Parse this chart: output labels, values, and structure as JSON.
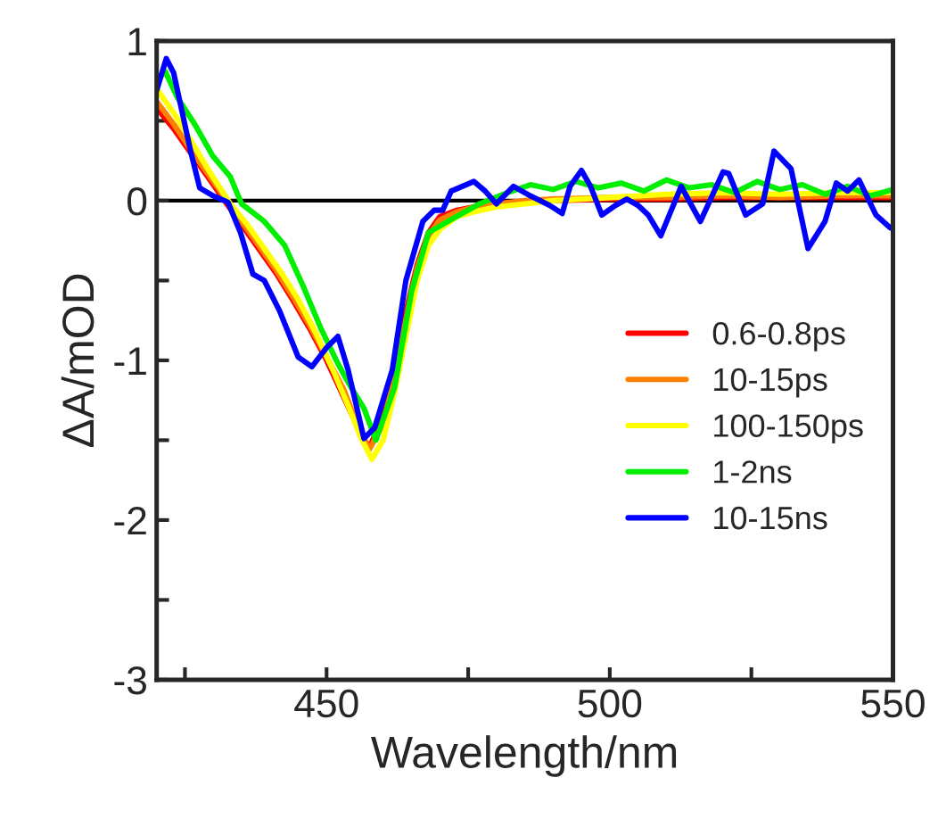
{
  "chart_data": {
    "type": "line",
    "xlabel": "Wavelength/nm",
    "ylabel": "ΔA/mOD",
    "xlim": [
      420,
      550
    ],
    "ylim": [
      -3,
      1
    ],
    "xticks": [
      {
        "value": 425,
        "label": null
      },
      450,
      {
        "value": 475,
        "label": null
      },
      500,
      {
        "value": 525,
        "label": null
      },
      550
    ],
    "yticks": [
      -3,
      {
        "value": -2.5,
        "label": null
      },
      -2,
      {
        "value": -1.5,
        "label": null
      },
      -1,
      {
        "value": -0.5,
        "label": null
      },
      0,
      {
        "value": 0.5,
        "label": null
      },
      1
    ],
    "grid": false,
    "legend": "bottom right",
    "ref_lines": [
      {
        "axis": "y",
        "value": 0,
        "color": "#000000"
      }
    ],
    "series": [
      {
        "name": "0.6-0.8ps",
        "color": "#ff0000",
        "x": [
          420,
          423,
          426,
          429,
          432,
          435,
          438,
          441,
          444,
          447,
          450,
          453,
          455,
          457.5,
          460,
          462,
          464,
          466,
          468,
          470,
          473,
          476,
          480,
          485,
          490,
          500,
          510,
          520,
          530,
          540,
          550
        ],
        "values": [
          0.58,
          0.45,
          0.3,
          0.15,
          0.0,
          -0.15,
          -0.3,
          -0.45,
          -0.62,
          -0.8,
          -1.0,
          null,
          -1.38,
          -1.55,
          -1.35,
          -1.05,
          -0.7,
          -0.4,
          -0.2,
          -0.1,
          -0.06,
          -0.04,
          -0.02,
          -0.01,
          0.0,
          0.01,
          0.01,
          0.02,
          0.02,
          0.02,
          0.02
        ]
      },
      {
        "name": "10-15ps",
        "color": "#ff8000",
        "x": [
          420,
          423,
          426,
          429,
          432,
          435,
          438,
          441,
          444,
          447,
          450,
          453,
          455,
          457.5,
          460,
          462,
          464,
          466,
          468,
          470,
          473,
          476,
          480,
          485,
          490,
          500,
          510,
          520,
          530,
          540,
          550
        ],
        "values": [
          0.62,
          0.48,
          0.32,
          0.17,
          0.02,
          -0.13,
          -0.28,
          -0.43,
          -0.6,
          -0.78,
          -0.98,
          -1.18,
          -1.36,
          -1.56,
          -1.4,
          -1.1,
          -0.75,
          -0.42,
          -0.22,
          -0.12,
          -0.07,
          -0.04,
          -0.02,
          0.0,
          0.01,
          0.02,
          0.02,
          0.03,
          0.02,
          0.03,
          0.03
        ]
      },
      {
        "name": "100-150ps",
        "color": "#ffff00",
        "x": [
          420,
          423,
          426,
          429,
          433,
          436,
          439,
          442,
          445,
          448,
          451,
          454,
          456,
          458,
          460,
          462,
          464,
          466,
          468,
          470,
          473,
          476,
          480,
          485,
          490,
          500,
          510,
          520,
          530,
          540,
          550
        ],
        "values": [
          0.7,
          0.55,
          0.38,
          0.2,
          -0.02,
          -0.15,
          -0.3,
          -0.45,
          -0.62,
          -0.82,
          -1.05,
          -1.3,
          -1.48,
          -1.62,
          -1.5,
          -1.2,
          -0.85,
          -0.5,
          -0.28,
          -0.18,
          -0.1,
          -0.07,
          -0.04,
          -0.02,
          0.0,
          0.02,
          0.04,
          0.05,
          0.04,
          0.05,
          0.05
        ]
      },
      {
        "name": "1-2ns",
        "color": "#00ee00",
        "x": [
          420,
          421.5,
          423.6,
          426.7,
          429.9,
          433,
          435,
          439,
          442.6,
          445.8,
          449,
          452,
          454,
          456.6,
          458.7,
          462,
          465,
          468,
          472.4,
          477,
          482,
          486,
          490,
          494,
          498,
          502,
          506,
          510,
          514,
          518,
          522,
          526,
          530,
          534,
          538,
          542,
          546,
          550
        ],
        "values": [
          0.75,
          0.81,
          0.65,
          0.48,
          0.28,
          0.15,
          -0.02,
          -0.13,
          -0.28,
          -0.53,
          -0.8,
          -1.02,
          -1.15,
          -1.3,
          -1.5,
          -1.17,
          -0.57,
          -0.2,
          -0.11,
          -0.02,
          0.05,
          0.1,
          0.07,
          0.12,
          0.08,
          0.11,
          0.06,
          0.13,
          0.08,
          0.1,
          0.05,
          0.12,
          0.07,
          0.1,
          0.04,
          0.09,
          0.03,
          0.07
        ]
      },
      {
        "name": "10-15ns",
        "color": "#0000ff",
        "x": [
          420,
          421.7,
          423,
          426,
          427.6,
          430,
          432.6,
          434.8,
          437,
          439,
          441.7,
          445,
          447.4,
          450,
          452,
          453.8,
          456.6,
          458.5,
          461.6,
          464,
          467,
          469,
          470.5,
          472,
          476,
          478,
          480,
          483,
          486,
          489.4,
          491.6,
          493,
          495,
          496.6,
          498.6,
          501,
          503,
          505,
          506.8,
          509,
          512.6,
          516,
          520,
          521,
          524,
          527,
          529,
          532,
          535,
          538,
          540,
          542,
          544,
          547,
          549.5
        ],
        "values": [
          0.69,
          0.89,
          0.8,
          0.31,
          0.08,
          0.03,
          -0.01,
          -0.2,
          -0.46,
          -0.5,
          -0.69,
          -0.98,
          -1.04,
          -0.92,
          -0.85,
          -1.06,
          -1.49,
          -1.42,
          -1.06,
          -0.5,
          -0.13,
          -0.06,
          -0.06,
          0.06,
          0.12,
          0.06,
          -0.02,
          0.09,
          0.03,
          -0.03,
          -0.08,
          0.09,
          0.19,
          0.09,
          -0.09,
          -0.03,
          0.01,
          -0.03,
          -0.09,
          -0.22,
          0.09,
          -0.13,
          0.18,
          0.17,
          -0.09,
          -0.02,
          0.31,
          0.2,
          -0.3,
          -0.13,
          0.11,
          0.06,
          0.13,
          -0.09,
          -0.17
        ]
      }
    ]
  }
}
